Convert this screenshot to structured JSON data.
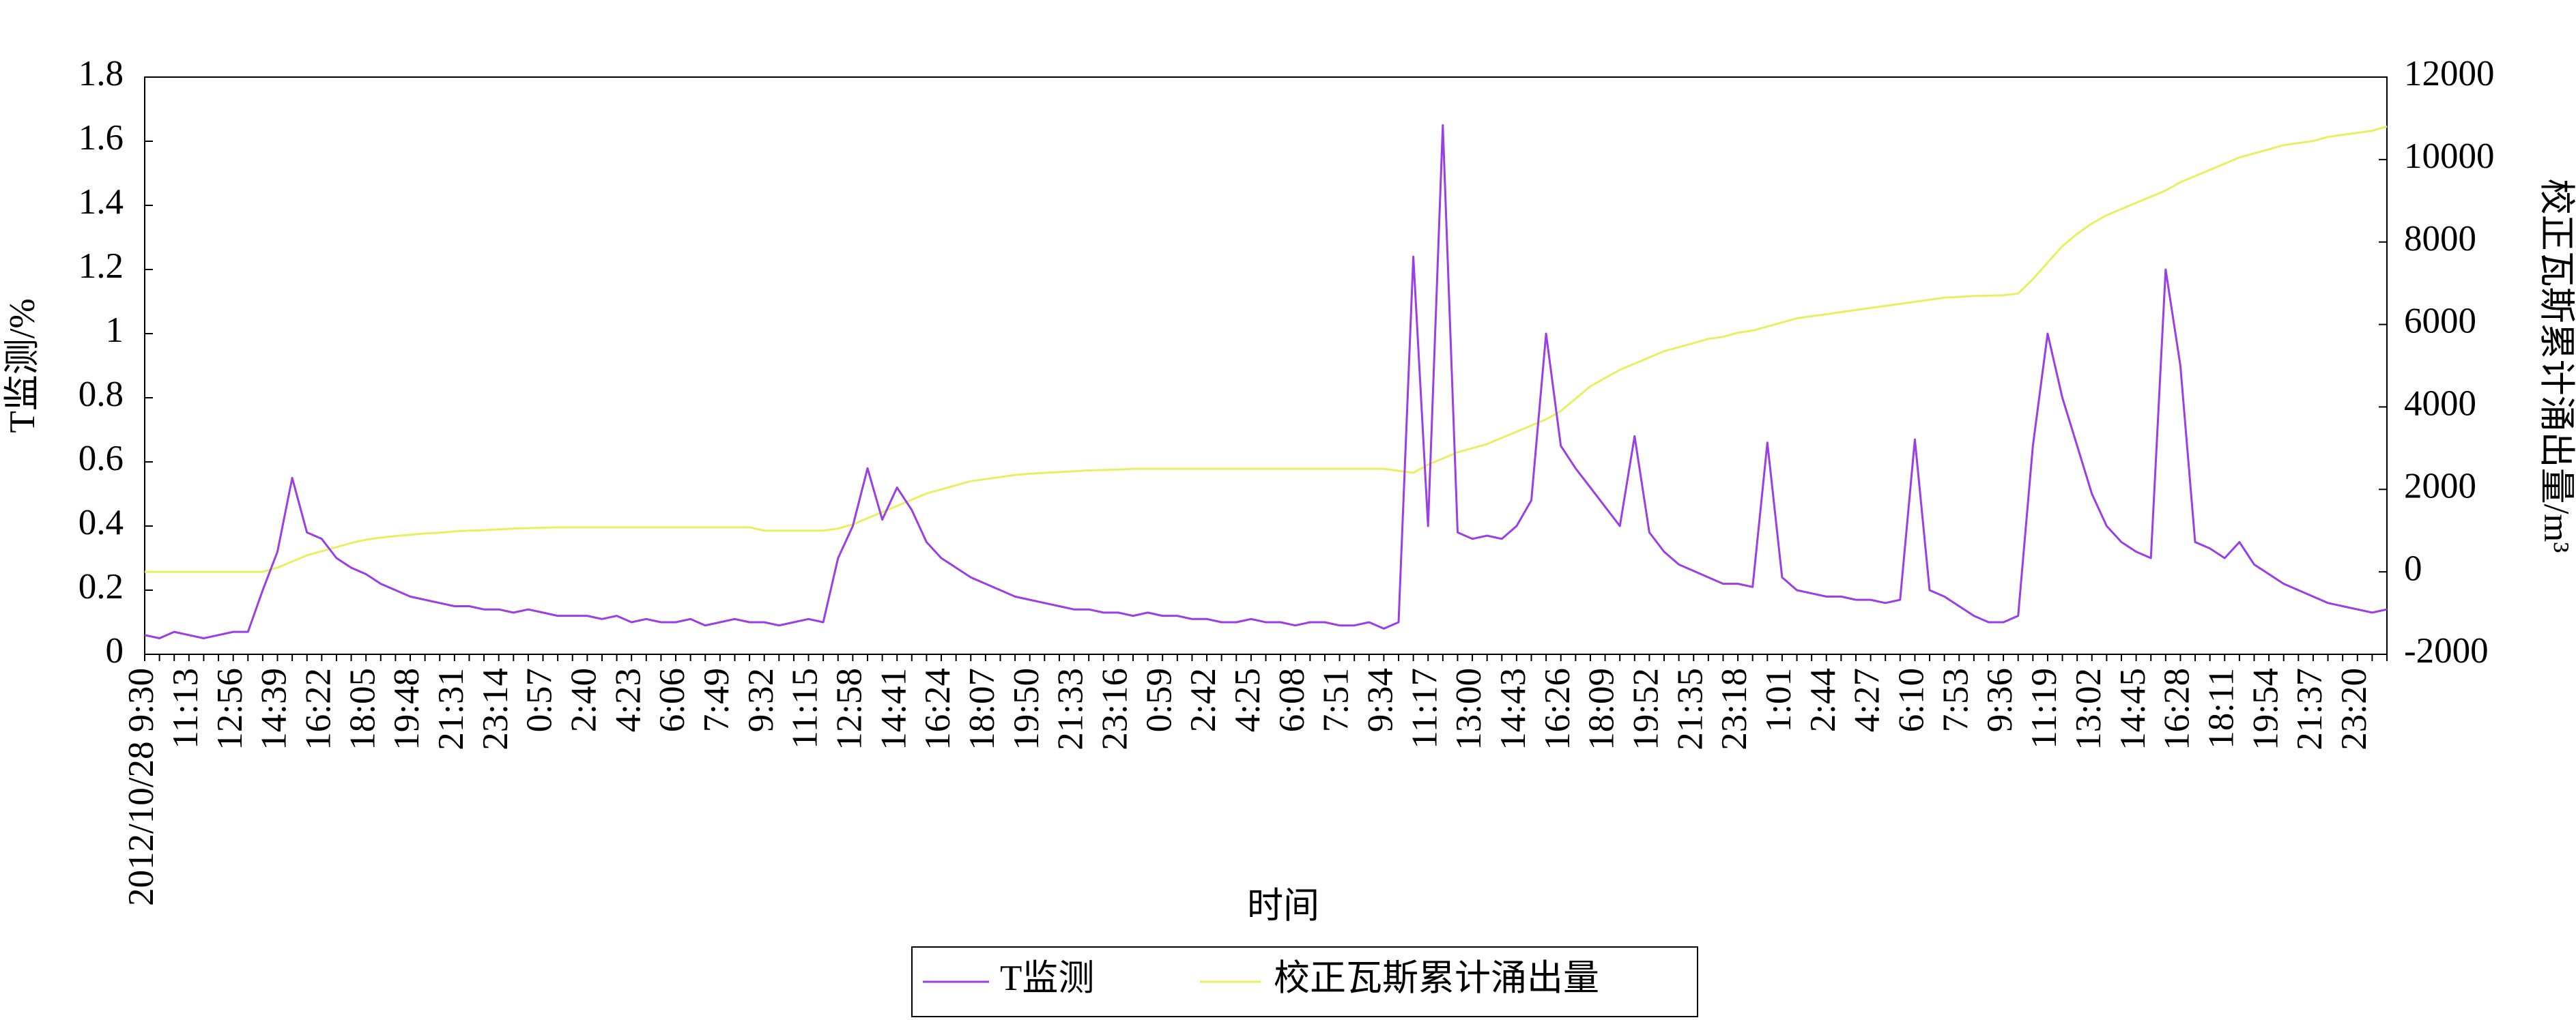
{
  "chart_data": {
    "type": "line",
    "x_label": "时间",
    "y_label": "T监测/%",
    "y2_label": "校正瓦斯累计涌出量/m³",
    "categories": [
      "2012/10/28 9:30",
      null,
      null,
      "11:13",
      null,
      null,
      "12:56",
      null,
      null,
      "14:39",
      null,
      null,
      "16:22",
      null,
      null,
      "18:05",
      null,
      null,
      "19:48",
      null,
      null,
      "21:31",
      null,
      null,
      "23:14",
      null,
      null,
      "0:57",
      null,
      null,
      "2:40",
      null,
      null,
      "4:23",
      null,
      null,
      "6:06",
      null,
      null,
      "7:49",
      null,
      null,
      "9:32",
      null,
      null,
      "11:15",
      null,
      null,
      "12:58",
      null,
      null,
      "14:41",
      null,
      null,
      "16:24",
      null,
      null,
      "18:07",
      null,
      null,
      "19:50",
      null,
      null,
      "21:33",
      null,
      null,
      "23:16",
      null,
      null,
      "0:59",
      null,
      null,
      "2:42",
      null,
      null,
      "4:25",
      null,
      null,
      "6:08",
      null,
      null,
      "7:51",
      null,
      null,
      "9:34",
      null,
      null,
      "11:17",
      null,
      null,
      "13:00",
      null,
      null,
      "14:43",
      null,
      null,
      "16:26",
      null,
      null,
      "18:09",
      null,
      null,
      "19:52",
      null,
      null,
      "21:35",
      null,
      null,
      "23:18",
      null,
      null,
      "1:01",
      null,
      null,
      "2:44",
      null,
      null,
      "4:27",
      null,
      null,
      "6:10",
      null,
      null,
      "7:53",
      null,
      null,
      "9:36",
      null,
      null,
      "11:19",
      null,
      null,
      "13:02",
      null,
      null,
      "14:45",
      null,
      null,
      "16:28",
      null,
      null,
      "18:11",
      null,
      null,
      "19:54",
      null,
      null,
      "21:37",
      null,
      null,
      "23:20",
      null,
      null
    ],
    "series": [
      {
        "name": "T监测",
        "color": "#9a3ee6",
        "values": [
          0.06,
          0.05,
          0.07,
          0.06,
          0.05,
          0.06,
          0.07,
          0.07,
          0.2,
          0.32,
          0.55,
          0.38,
          0.36,
          0.3,
          0.27,
          0.25,
          0.22,
          0.2,
          0.18,
          0.17,
          0.16,
          0.15,
          0.15,
          0.14,
          0.14,
          0.13,
          0.14,
          0.13,
          0.12,
          0.12,
          0.12,
          0.11,
          0.12,
          0.1,
          0.11,
          0.1,
          0.1,
          0.11,
          0.09,
          0.1,
          0.11,
          0.1,
          0.1,
          0.09,
          0.1,
          0.11,
          0.1,
          0.3,
          0.4,
          0.58,
          0.42,
          0.52,
          0.45,
          0.35,
          0.3,
          0.27,
          0.24,
          0.22,
          0.2,
          0.18,
          0.17,
          0.16,
          0.15,
          0.14,
          0.14,
          0.13,
          0.13,
          0.12,
          0.13,
          0.12,
          0.12,
          0.11,
          0.11,
          0.1,
          0.1,
          0.11,
          0.1,
          0.1,
          0.09,
          0.1,
          0.1,
          0.09,
          0.09,
          0.1,
          0.08,
          0.1,
          1.24,
          0.4,
          1.65,
          0.38,
          0.36,
          0.37,
          0.36,
          0.4,
          0.48,
          1.0,
          0.65,
          0.58,
          0.52,
          0.46,
          0.4,
          0.68,
          0.38,
          0.32,
          0.28,
          0.26,
          0.24,
          0.22,
          0.22,
          0.21,
          0.66,
          0.24,
          0.2,
          0.19,
          0.18,
          0.18,
          0.17,
          0.17,
          0.16,
          0.17,
          0.67,
          0.2,
          0.18,
          0.15,
          0.12,
          0.1,
          0.1,
          0.12,
          0.65,
          1.0,
          0.8,
          0.65,
          0.5,
          0.4,
          0.35,
          0.32,
          0.3,
          1.2,
          0.9,
          0.35,
          0.33,
          0.3,
          0.35,
          0.28,
          0.25,
          0.22,
          0.2,
          0.18,
          0.16,
          0.15,
          0.14,
          0.13,
          0.14
        ]
      },
      {
        "name": "校正瓦斯累计涌出量",
        "color": "#e8f060",
        "axis": "y2",
        "values": [
          0,
          0,
          0,
          0,
          0,
          0,
          0,
          0,
          0,
          100,
          250,
          400,
          500,
          600,
          700,
          780,
          830,
          870,
          900,
          930,
          950,
          980,
          1000,
          1010,
          1030,
          1050,
          1060,
          1070,
          1080,
          1080,
          1080,
          1080,
          1080,
          1080,
          1080,
          1080,
          1080,
          1080,
          1080,
          1080,
          1080,
          1080,
          1000,
          1000,
          1000,
          1000,
          1000,
          1050,
          1150,
          1300,
          1450,
          1600,
          1750,
          1900,
          2000,
          2100,
          2200,
          2250,
          2300,
          2350,
          2380,
          2400,
          2420,
          2440,
          2460,
          2470,
          2480,
          2500,
          2500,
          2500,
          2500,
          2500,
          2500,
          2500,
          2500,
          2500,
          2500,
          2500,
          2500,
          2500,
          2500,
          2500,
          2500,
          2500,
          2500,
          2450,
          2400,
          2600,
          2750,
          2900,
          3000,
          3100,
          3250,
          3400,
          3550,
          3700,
          3900,
          4200,
          4500,
          4700,
          4900,
          5050,
          5200,
          5350,
          5450,
          5550,
          5650,
          5700,
          5800,
          5850,
          5950,
          6050,
          6150,
          6200,
          6250,
          6300,
          6350,
          6400,
          6450,
          6500,
          6550,
          6600,
          6650,
          6670,
          6690,
          6700,
          6710,
          6750,
          7100,
          7500,
          7900,
          8200,
          8450,
          8650,
          8800,
          8950,
          9100,
          9250,
          9450,
          9600,
          9750,
          9900,
          10050,
          10150,
          10250,
          10350,
          10400,
          10450,
          10550,
          10600,
          10650,
          10700,
          10800
        ]
      }
    ],
    "ylim": [
      0,
      1.8
    ],
    "yticks": [
      0,
      0.2,
      0.4,
      0.6,
      0.8,
      1,
      1.2,
      1.4,
      1.6,
      1.8
    ],
    "y2lim": [
      -2000,
      12000
    ],
    "y2ticks": [
      -2000,
      0,
      2000,
      4000,
      6000,
      8000,
      10000,
      12000
    ],
    "grid": false,
    "legend": "bottom"
  }
}
